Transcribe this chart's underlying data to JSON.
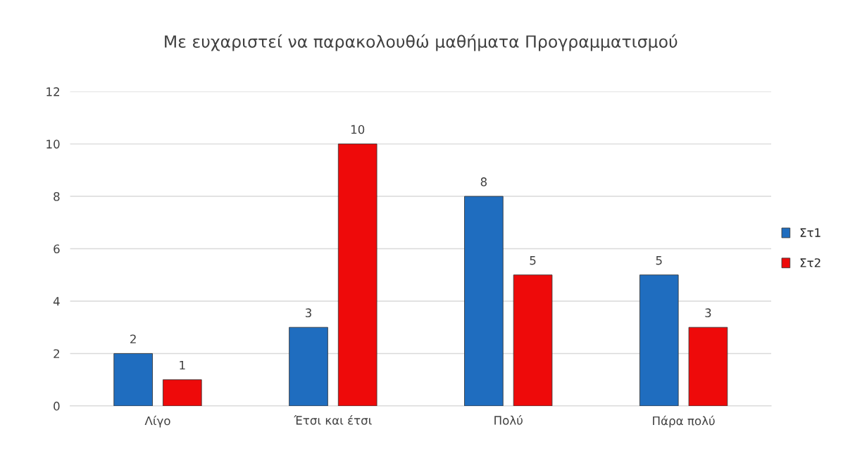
{
  "chart_data": {
    "type": "bar",
    "title": "Με ευχαριστεί να παρακολουθώ μαθήματα Προγραμματισμού",
    "categories": [
      "Λίγο",
      "Έτσι και έτσι",
      "Πολύ",
      "Πάρα πολύ"
    ],
    "series": [
      {
        "name": "Στ1",
        "color": "#1f6dbf",
        "values": [
          2,
          3,
          8,
          5
        ]
      },
      {
        "name": "Στ2",
        "color": "#ee0a0a",
        "values": [
          1,
          10,
          5,
          3
        ]
      }
    ],
    "ylim": [
      0,
      12
    ],
    "yticks": [
      0,
      2,
      4,
      6,
      8,
      10,
      12
    ],
    "grid": "y",
    "legend": "right",
    "data_labels": true
  }
}
